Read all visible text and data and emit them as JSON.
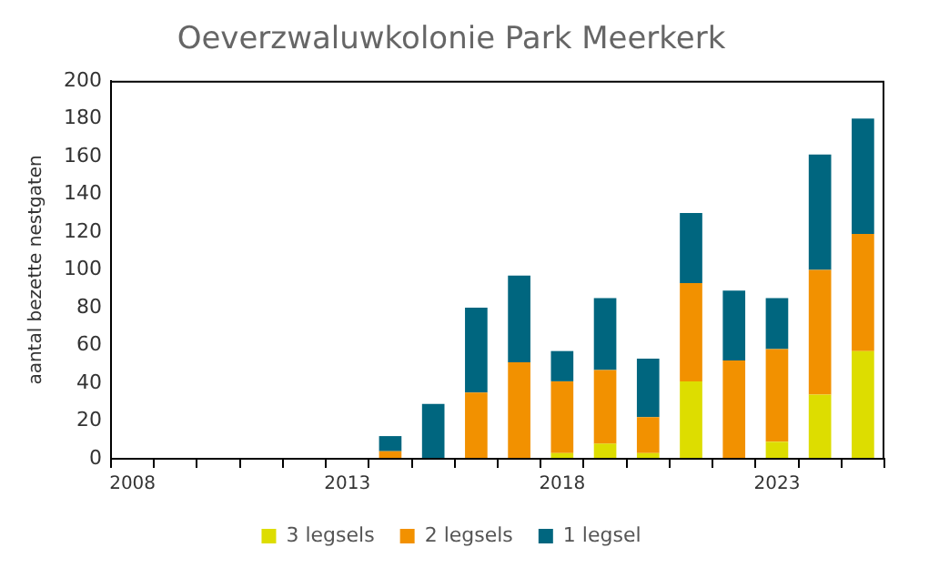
{
  "chart_data": {
    "type": "bar",
    "title": "Oeverzwaluwkolonie Park Meerkerk",
    "ylabel": "aantal bezette nestgaten",
    "categories": [
      "2008",
      null,
      null,
      null,
      null,
      "2013",
      null,
      null,
      null,
      null,
      "2018",
      null,
      null,
      null,
      null,
      "2023",
      null,
      null
    ],
    "stacked": true,
    "series": [
      {
        "name": "3 legsels",
        "color": "#dddd00",
        "values": [
          null,
          null,
          null,
          null,
          null,
          null,
          0,
          0,
          0,
          0,
          3,
          8,
          3,
          41,
          0,
          9,
          34,
          57
        ]
      },
      {
        "name": "2 legsels",
        "color": "#f29100",
        "values": [
          null,
          null,
          null,
          null,
          null,
          null,
          4,
          0,
          35,
          51,
          38,
          39,
          19,
          52,
          52,
          49,
          66,
          62
        ]
      },
      {
        "name": "1 legsel",
        "color": "#00667f",
        "values": [
          null,
          null,
          null,
          null,
          null,
          null,
          8,
          29,
          45,
          46,
          16,
          38,
          31,
          37,
          37,
          27,
          61,
          61
        ]
      }
    ],
    "ylim": [
      0,
      200
    ],
    "yticks": [
      0,
      20,
      40,
      60,
      80,
      100,
      120,
      140,
      160,
      180,
      200
    ],
    "grid": false,
    "legend": "bottom"
  }
}
